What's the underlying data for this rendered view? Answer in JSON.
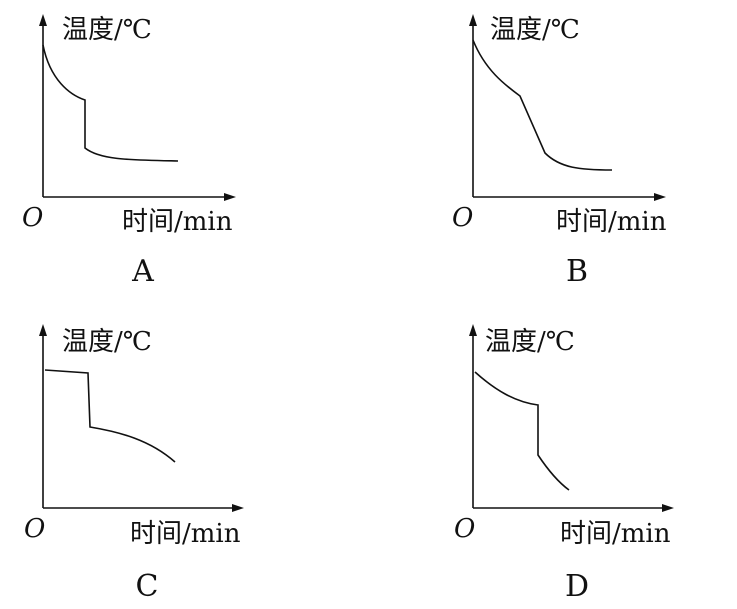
{
  "panels": [
    {
      "y_axis": "温度/℃",
      "x_axis": "时间/min",
      "origin": "O",
      "label": "A"
    },
    {
      "y_axis": "温度/℃",
      "x_axis": "时间/min",
      "origin": "O",
      "label": "B"
    },
    {
      "y_axis": "温度/℃",
      "x_axis": "时间/min",
      "origin": "O",
      "label": "C"
    },
    {
      "y_axis": "温度/℃",
      "x_axis": "时间/min",
      "origin": "O",
      "label": "D"
    }
  ]
}
